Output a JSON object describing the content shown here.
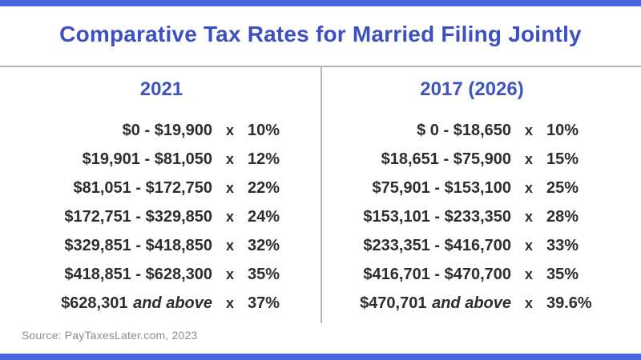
{
  "chart_data": {
    "type": "table",
    "title": "Comparative Tax Rates for Married Filing Jointly",
    "source": "Source: PayTaxesLater.com, 2023",
    "separator": "x",
    "columns": [
      {
        "header": "2021",
        "rows": [
          {
            "range": "$0 - $19,900",
            "suffix": "",
            "rate": "10%"
          },
          {
            "range": "$19,901 - $81,050",
            "suffix": "",
            "rate": "12%"
          },
          {
            "range": "$81,051 - $172,750",
            "suffix": "",
            "rate": "22%"
          },
          {
            "range": "$172,751 - $329,850",
            "suffix": "",
            "rate": "24%"
          },
          {
            "range": "$329,851 - $418,850",
            "suffix": "",
            "rate": "32%"
          },
          {
            "range": "$418,851 - $628,300",
            "suffix": "",
            "rate": "35%"
          },
          {
            "range": "$628,301",
            "suffix": "and above",
            "rate": "37%"
          }
        ]
      },
      {
        "header": "2017 (2026)",
        "rows": [
          {
            "range": "$ 0 - $18,650",
            "suffix": "",
            "rate": "10%"
          },
          {
            "range": "$18,651 - $75,900",
            "suffix": "",
            "rate": "15%"
          },
          {
            "range": "$75,901 - $153,100",
            "suffix": "",
            "rate": "25%"
          },
          {
            "range": "$153,101 - $233,350",
            "suffix": "",
            "rate": "28%"
          },
          {
            "range": "$233,351 - $416,700",
            "suffix": "",
            "rate": "33%"
          },
          {
            "range": "$416,701 - $470,700",
            "suffix": "",
            "rate": "35%"
          },
          {
            "range": "$470,701",
            "suffix": "and above",
            "rate": "39.6%"
          }
        ]
      }
    ]
  },
  "colors": {
    "accent_bar_blue": "#4a67de",
    "title_blue": "#3d50c3",
    "column_header_blue": "#3d55c2",
    "divider_gray": "#b5b5b5",
    "body_text_dark": "#2d2d2d",
    "source_gray": "#878d96",
    "background": "#ffffff"
  }
}
